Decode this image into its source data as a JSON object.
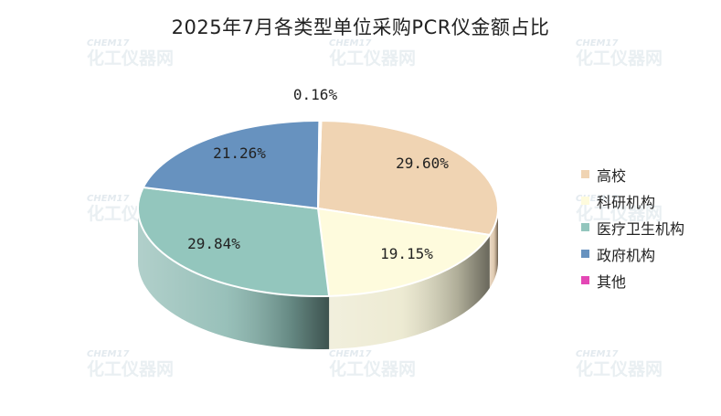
{
  "watermark": {
    "brand": "CHEM17",
    "name": "化工仪器网"
  },
  "chart_data": {
    "type": "pie",
    "title": "2025年7月各类型单位采购PCR仪金额占比",
    "legend_position": "right",
    "slices": [
      {
        "label": "高校",
        "value": 29.6,
        "display": "29.60%",
        "color": "#f0d4b3"
      },
      {
        "label": "科研机构",
        "value": 19.15,
        "display": "19.15%",
        "color": "#fefbdd"
      },
      {
        "label": "医疗卫生机构",
        "value": 29.84,
        "display": "29.84%",
        "color": "#93c6bd"
      },
      {
        "label": "政府机构",
        "value": 21.26,
        "display": "21.26%",
        "color": "#6792bf"
      },
      {
        "label": "其他",
        "value": 0.16,
        "display": "0.16%",
        "color": "#e447b5"
      }
    ]
  }
}
